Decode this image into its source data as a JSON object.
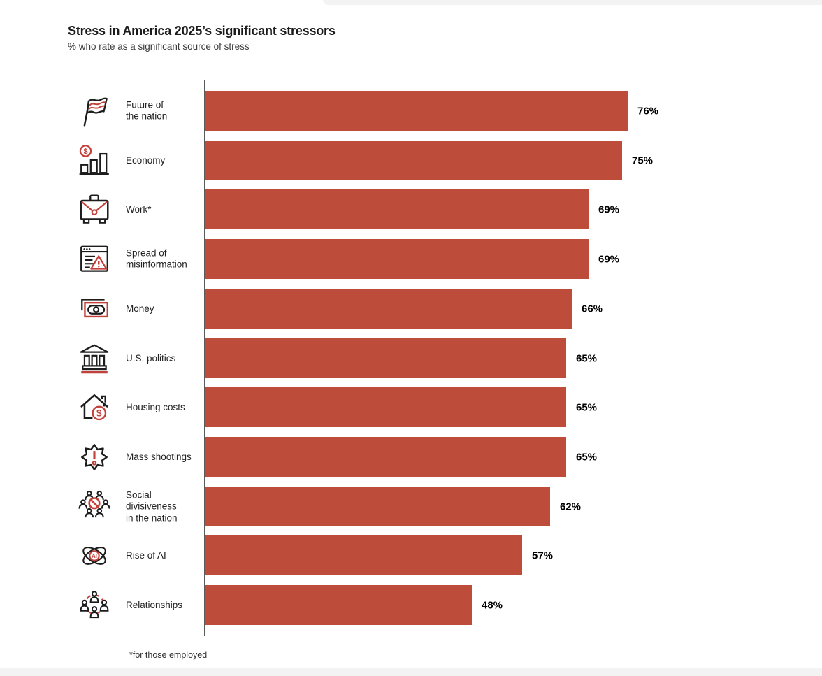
{
  "page": {
    "title": "Stress in America 2025’s significant stressors",
    "subtitle": "% who rate as a significant source of stress",
    "footnote": "*for those employed"
  },
  "colors": {
    "bar": "#BE4C3A",
    "icon_accent": "#C2403A",
    "icon_black": "#1C1C1C",
    "axis_line": "#5A5A5A",
    "value_text": "#000000"
  },
  "chart_data": {
    "type": "bar",
    "orientation": "horizontal",
    "title": "Stress in America 2025’s significant stressors",
    "subtitle": "% who rate as a significant source of stress",
    "xlabel": "",
    "ylabel": "",
    "xlim": [
      0,
      100
    ],
    "value_suffix": "%",
    "grid": false,
    "legend": "none",
    "categories": [
      "Future of the nation",
      "Economy",
      "Work*",
      "Spread of misinformation",
      "Money",
      "U.S. politics",
      "Housing costs",
      "Mass shootings",
      "Social divisiveness in the nation",
      "Rise of AI",
      "Relationships"
    ],
    "display_labels": [
      "Future of\nthe nation",
      "Economy",
      "Work*",
      "Spread of\nmisinformation",
      "Money",
      "U.S. politics",
      "Housing costs",
      "Mass shootings",
      "Social\ndivisiveness\nin the nation",
      "Rise of AI",
      "Relationships"
    ],
    "values": [
      76,
      75,
      69,
      69,
      66,
      65,
      65,
      65,
      62,
      57,
      48
    ],
    "value_labels": [
      "76%",
      "75%",
      "69%",
      "69%",
      "66%",
      "65%",
      "65%",
      "65%",
      "62%",
      "57%",
      "48%"
    ],
    "icons": [
      "flag-icon",
      "economy-icon",
      "briefcase-icon",
      "misinformation-icon",
      "money-icon",
      "government-icon",
      "housing-icon",
      "mass-shootings-icon",
      "social-divisiveness-icon",
      "ai-icon",
      "relationships-icon"
    ],
    "footnote": "*for those employed"
  }
}
